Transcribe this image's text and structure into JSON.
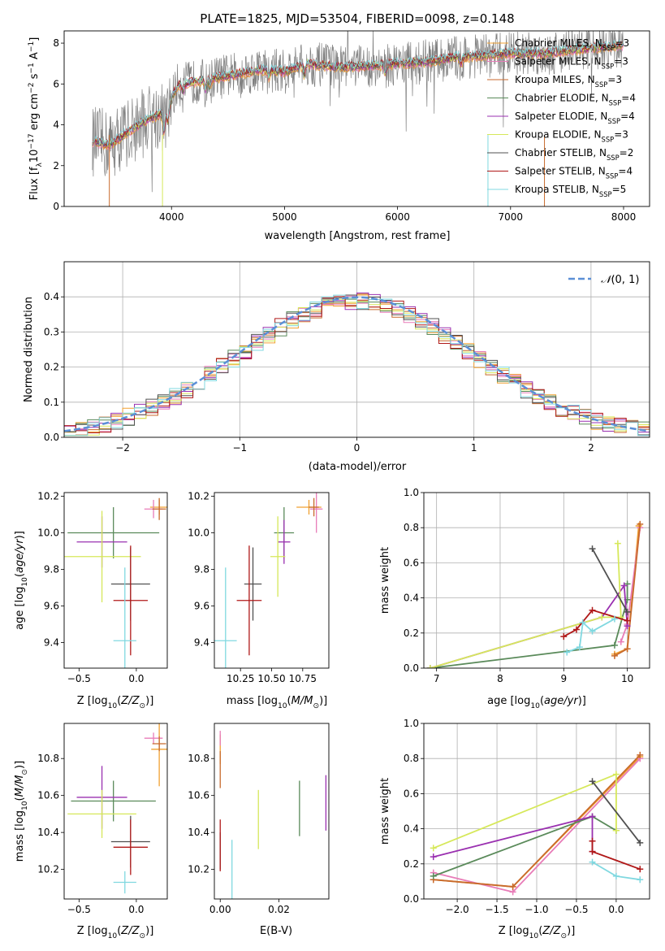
{
  "chart_data": [
    {
      "id": "spectrum",
      "type": "line",
      "title": "PLATE=1825, MJD=53504, FIBERID=0098, z=0.148",
      "xlabel": "wavelength [Angstrom, rest frame]",
      "ylabel": "Flux [f_λ10^-17 erg cm^-2 s^-1 A^-1]",
      "xlim": [
        3050,
        8230
      ],
      "ylim": [
        0,
        8.6
      ],
      "xticks": [
        4000,
        5000,
        6000,
        7000,
        8000
      ],
      "yticks": [
        0,
        2,
        4,
        6,
        8
      ],
      "legend_position": "right",
      "legend": [
        "Chabrier MILES, N_SSP=3",
        "Salpeter MILES, N_SSP=3",
        "Kroupa MILES, N_SSP=3",
        "Chabrier ELODIE, N_SSP=4",
        "Salpeter ELODIE, N_SSP=4",
        "Kroupa ELODIE, N_SSP=3",
        "Chabrier STELIB, N_SSP=2",
        "Salpeter STELIB, N_SSP=4",
        "Kroupa STELIB, N_SSP=5"
      ],
      "continuum_x": [
        3300,
        3450,
        3600,
        3800,
        3950,
        4050,
        4200,
        4500,
        4800,
        5000,
        5200,
        5500,
        5800,
        6000,
        6300,
        6500,
        6800,
        7000,
        7300,
        7600,
        8000
      ],
      "continuum_y": [
        3.2,
        3.0,
        3.6,
        4.3,
        4.6,
        5.9,
        6.1,
        6.4,
        6.7,
        6.6,
        7.0,
        6.8,
        6.9,
        7.0,
        7.1,
        7.3,
        7.4,
        7.5,
        7.5,
        7.7,
        7.9
      ]
    },
    {
      "id": "residuals",
      "type": "histogram",
      "xlabel": "(data-model)/error",
      "ylabel": "Normed distribution",
      "xlim": [
        -2.5,
        2.5
      ],
      "ylim": [
        0,
        0.5
      ],
      "xticks": [
        -2,
        -1,
        0,
        1,
        2
      ],
      "yticks": [
        0.0,
        0.1,
        0.2,
        0.3,
        0.4
      ],
      "grid": true,
      "legend_position": "top-right",
      "reference_curve": "𝒩(0,1)",
      "bin_width": 0.1
    },
    {
      "id": "age_vs_Z",
      "type": "errorbar",
      "xlabel": "Z [log10(Z/Z⊙)]",
      "ylabel": "age  [log10(age/yr)]",
      "xlim": [
        -0.63,
        0.27
      ],
      "ylim": [
        9.26,
        10.22
      ],
      "xticks": [
        -0.5,
        0.0
      ],
      "yticks": [
        9.4,
        9.6,
        9.8,
        10.0,
        10.2
      ],
      "points": [
        {
          "x": 0.2,
          "y": 10.14,
          "ex": 0.08,
          "ey": 0.04,
          "model": "Chabrier MILES"
        },
        {
          "x": 0.15,
          "y": 10.13,
          "ex": 0.08,
          "ey": 0.05,
          "model": "Salpeter MILES"
        },
        {
          "x": 0.2,
          "y": 10.13,
          "ex": 0.06,
          "ey": 0.06,
          "model": "Kroupa MILES"
        },
        {
          "x": -0.2,
          "y": 10.0,
          "ex": 0.4,
          "ey": 0.14,
          "model": "Chabrier ELODIE"
        },
        {
          "x": -0.3,
          "y": 9.95,
          "ex": 0.22,
          "ey": 0.14,
          "model": "Salpeter ELODIE"
        },
        {
          "x": -0.3,
          "y": 9.87,
          "ex": 0.34,
          "ey": 0.25,
          "model": "Kroupa ELODIE"
        },
        {
          "x": -0.05,
          "y": 9.72,
          "ex": 0.17,
          "ey": 0.2,
          "model": "Chabrier STELIB"
        },
        {
          "x": -0.05,
          "y": 9.63,
          "ex": 0.15,
          "ey": 0.3,
          "model": "Salpeter STELIB"
        },
        {
          "x": -0.1,
          "y": 9.41,
          "ex": 0.1,
          "ey": 0.4,
          "model": "Kroupa STELIB"
        }
      ]
    },
    {
      "id": "age_vs_mass",
      "type": "errorbar",
      "xlabel": "mass [log10(M/M⊙)]",
      "ylabel": "",
      "xlim": [
        10.04,
        10.96
      ],
      "ylim": [
        9.26,
        10.22
      ],
      "xticks": [
        10.25,
        10.5,
        10.75
      ],
      "xticklabels": [
        "10.25",
        "10.50",
        "10.75"
      ],
      "yticks": [
        9.4,
        9.6,
        9.8,
        10.0,
        10.2
      ],
      "points": [
        {
          "x": 10.8,
          "y": 10.14,
          "ex": 0.1,
          "ey": 0.04,
          "model": "Chabrier MILES"
        },
        {
          "x": 10.86,
          "y": 10.13,
          "ex": 0.05,
          "ey": 0.13,
          "model": "Salpeter MILES"
        },
        {
          "x": 10.84,
          "y": 10.14,
          "ex": 0.04,
          "ey": 0.05,
          "model": "Kroupa MILES"
        },
        {
          "x": 10.6,
          "y": 10.0,
          "ex": 0.08,
          "ey": 0.14,
          "model": "Chabrier ELODIE"
        },
        {
          "x": 10.6,
          "y": 9.95,
          "ex": 0.05,
          "ey": 0.12,
          "model": "Salpeter ELODIE"
        },
        {
          "x": 10.55,
          "y": 9.87,
          "ex": 0.06,
          "ey": 0.22,
          "model": "Kroupa ELODIE"
        },
        {
          "x": 10.35,
          "y": 9.72,
          "ex": 0.07,
          "ey": 0.2,
          "model": "Chabrier STELIB"
        },
        {
          "x": 10.32,
          "y": 9.63,
          "ex": 0.1,
          "ey": 0.3,
          "model": "Salpeter STELIB"
        },
        {
          "x": 10.13,
          "y": 9.41,
          "ex": 0.09,
          "ey": 0.4,
          "model": "Kroupa STELIB"
        }
      ]
    },
    {
      "id": "weight_vs_age",
      "type": "line",
      "xlabel": "age  [log10(age/yr)]",
      "ylabel": "mass weight",
      "xlim": [
        6.8,
        10.35
      ],
      "ylim": [
        0,
        1
      ],
      "xticks": [
        7,
        8,
        9,
        10
      ],
      "yticks": [
        0.0,
        0.2,
        0.4,
        0.6,
        0.8,
        1.0
      ],
      "grid": true,
      "series": [
        {
          "model": "Chabrier MILES",
          "x": [
            9.8,
            10.0,
            10.18
          ],
          "y": [
            0.08,
            0.11,
            0.81
          ]
        },
        {
          "model": "Salpeter MILES",
          "x": [
            9.9,
            10.0,
            10.2
          ],
          "y": [
            0.15,
            0.25,
            0.8
          ]
        },
        {
          "model": "Kroupa MILES",
          "x": [
            9.8,
            10.0,
            10.2
          ],
          "y": [
            0.07,
            0.11,
            0.82
          ]
        },
        {
          "model": "Chabrier ELODIE",
          "x": [
            6.9,
            9.8,
            10.0,
            10.0
          ],
          "y": [
            0.0,
            0.13,
            0.39,
            0.48
          ]
        },
        {
          "model": "Salpeter ELODIE",
          "x": [
            6.9,
            9.6,
            9.95,
            10.0
          ],
          "y": [
            0.0,
            0.29,
            0.47,
            0.24
          ]
        },
        {
          "model": "Kroupa ELODIE",
          "x": [
            6.9,
            9.6,
            9.9,
            9.85
          ],
          "y": [
            0.0,
            0.29,
            0.29,
            0.71
          ]
        },
        {
          "model": "Chabrier STELIB",
          "x": [
            9.45,
            10.0
          ],
          "y": [
            0.68,
            0.32
          ]
        },
        {
          "model": "Salpeter STELIB",
          "x": [
            9.0,
            9.2,
            9.45,
            10.0
          ],
          "y": [
            0.18,
            0.22,
            0.33,
            0.27
          ]
        },
        {
          "model": "Kroupa STELIB",
          "x": [
            9.05,
            9.25,
            9.3,
            9.45,
            9.8
          ],
          "y": [
            0.09,
            0.12,
            0.26,
            0.21,
            0.28
          ]
        }
      ]
    },
    {
      "id": "mass_vs_Z",
      "type": "errorbar",
      "xlabel": "Z [log10(Z/Z⊙)]",
      "ylabel": "mass [log10(M/M⊙)]",
      "xlim": [
        -0.63,
        0.27
      ],
      "ylim": [
        10.04,
        10.99
      ],
      "xticks": [
        -0.5,
        0.0
      ],
      "yticks": [
        10.2,
        10.4,
        10.6,
        10.8
      ],
      "points": [
        {
          "x": 0.2,
          "y": 10.85,
          "ex": 0.07,
          "ey": 0.2,
          "model": "Chabrier MILES"
        },
        {
          "x": 0.15,
          "y": 10.91,
          "ex": 0.08,
          "ey": 0.03,
          "model": "Salpeter MILES"
        },
        {
          "x": 0.2,
          "y": 10.88,
          "ex": 0.06,
          "ey": 0.04,
          "model": "Kroupa MILES"
        },
        {
          "x": -0.2,
          "y": 10.57,
          "ex": 0.37,
          "ey": 0.11,
          "model": "Chabrier ELODIE"
        },
        {
          "x": -0.3,
          "y": 10.59,
          "ex": 0.22,
          "ey": 0.17,
          "model": "Salpeter ELODIE"
        },
        {
          "x": -0.3,
          "y": 10.5,
          "ex": 0.3,
          "ey": 0.13,
          "model": "Kroupa ELODIE"
        },
        {
          "x": -0.05,
          "y": 10.35,
          "ex": 0.17,
          "ey": 0.14,
          "model": "Chabrier STELIB"
        },
        {
          "x": -0.05,
          "y": 10.32,
          "ex": 0.15,
          "ey": 0.15,
          "model": "Salpeter STELIB"
        },
        {
          "x": -0.1,
          "y": 10.13,
          "ex": 0.1,
          "ey": 0.06,
          "model": "Kroupa STELIB"
        }
      ]
    },
    {
      "id": "mass_vs_ebv",
      "type": "errorbar",
      "xlabel": "E(B-V)",
      "ylabel": "",
      "xlim": [
        -0.002,
        0.037
      ],
      "ylim": [
        10.04,
        10.99
      ],
      "xticks": [
        0.0,
        0.02
      ],
      "xticklabels": [
        "0.00",
        "0.02"
      ],
      "yticks": [
        10.2,
        10.4,
        10.6,
        10.8
      ],
      "points": [
        {
          "x": 0.0,
          "y": 10.85,
          "ex": 0,
          "ey": 0.08,
          "model": "Chabrier MILES"
        },
        {
          "x": 0.0,
          "y": 10.91,
          "ex": 0,
          "ey": 0.04,
          "model": "Salpeter MILES"
        },
        {
          "x": 0.0,
          "y": 10.74,
          "ex": 0,
          "ey": 0.1,
          "model": "Kroupa MILES"
        },
        {
          "x": 0.027,
          "y": 10.53,
          "ex": 0,
          "ey": 0.15,
          "model": "Chabrier ELODIE"
        },
        {
          "x": 0.036,
          "y": 10.56,
          "ex": 0,
          "ey": 0.15,
          "model": "Salpeter ELODIE"
        },
        {
          "x": 0.013,
          "y": 10.47,
          "ex": 0,
          "ey": 0.16,
          "model": "Kroupa ELODIE"
        },
        {
          "x": 0.0,
          "y": 10.3,
          "ex": 0,
          "ey": 0.1,
          "model": "Chabrier STELIB"
        },
        {
          "x": 0.0,
          "y": 10.33,
          "ex": 0,
          "ey": 0.14,
          "model": "Salpeter STELIB"
        },
        {
          "x": 0.004,
          "y": 10.2,
          "ex": 0,
          "ey": 0.16,
          "model": "Kroupa STELIB"
        }
      ]
    },
    {
      "id": "weight_vs_Z",
      "type": "line",
      "xlabel": "Z [log10(Z/Z⊙)]",
      "ylabel": "mass weight",
      "xlim": [
        -2.42,
        0.42
      ],
      "ylim": [
        0,
        1
      ],
      "xticks": [
        -2.0,
        -1.5,
        -1.0,
        -0.5,
        0.0
      ],
      "yticks": [
        0.0,
        0.2,
        0.4,
        0.6,
        0.8,
        1.0
      ],
      "grid": true,
      "series": [
        {
          "model": "Chabrier MILES",
          "x": [
            -2.3,
            -1.3,
            0.3
          ],
          "y": [
            0.11,
            0.07,
            0.81
          ]
        },
        {
          "model": "Salpeter MILES",
          "x": [
            -2.3,
            -1.3,
            0.3
          ],
          "y": [
            0.15,
            0.04,
            0.8
          ]
        },
        {
          "model": "Kroupa MILES",
          "x": [
            -2.3,
            -1.3,
            0.3
          ],
          "y": [
            0.11,
            0.07,
            0.82
          ]
        },
        {
          "model": "Chabrier ELODIE",
          "x": [
            -2.3,
            -0.3,
            0.0
          ],
          "y": [
            0.13,
            0.47,
            0.39
          ]
        },
        {
          "model": "Salpeter ELODIE",
          "x": [
            -2.3,
            -0.3,
            -0.3
          ],
          "y": [
            0.24,
            0.47,
            0.27
          ]
        },
        {
          "model": "Kroupa ELODIE",
          "x": [
            -2.3,
            0.0,
            0.0
          ],
          "y": [
            0.29,
            0.71,
            0.39
          ]
        },
        {
          "model": "Chabrier STELIB",
          "x": [
            -0.3,
            0.3
          ],
          "y": [
            0.67,
            0.32
          ]
        },
        {
          "model": "Salpeter STELIB",
          "x": [
            -0.3,
            -0.3,
            0.3
          ],
          "y": [
            0.33,
            0.27,
            0.17
          ]
        },
        {
          "model": "Kroupa STELIB",
          "x": [
            -0.3,
            0.0,
            0.3
          ],
          "y": [
            0.21,
            0.13,
            0.11
          ]
        }
      ]
    }
  ],
  "colors": {
    "Chabrier MILES": "#f0a030",
    "Salpeter MILES": "#e87cb8",
    "Kroupa MILES": "#c86a2c",
    "Chabrier ELODIE": "#5a8a5a",
    "Salpeter ELODIE": "#9a30b0",
    "Kroupa ELODIE": "#d6e85a",
    "Chabrier STELIB": "#505050",
    "Salpeter STELIB": "#b01818",
    "Kroupa STELIB": "#80d8e0",
    "data": "#808080",
    "gauss": "#5b8fd6"
  }
}
